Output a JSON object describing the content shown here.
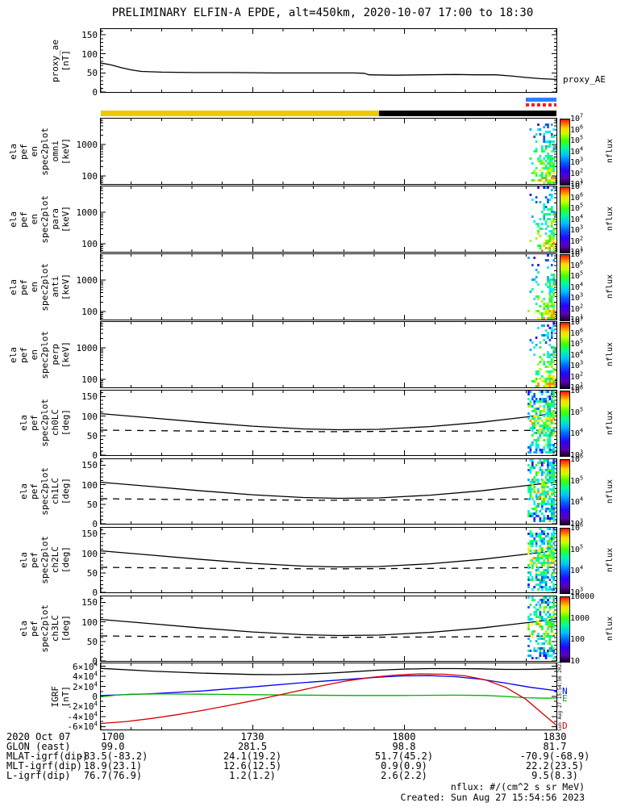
{
  "title": "PRELIMINARY ELFIN-A EPDE, alt=450km, 2020-10-07 17:00 to 18:30",
  "footer": {
    "nflux_units": "nflux: #/(cm^2 s sr MeV)",
    "created": "Created: Sun Aug 27 15:54:56 2023",
    "side_timestamp": "Sun Aug 27 15:54:56 2023"
  },
  "time_axis": {
    "start": "2020-10-07 17:00",
    "end": "2020-10-07 18:30",
    "tick_labels": [
      "1700",
      "1730",
      "1800",
      "1830"
    ],
    "tick_minutes": [
      0,
      30,
      60,
      90
    ],
    "minor_step_min": 6
  },
  "ephemeris": {
    "date_label": "2020 Oct 07",
    "rows": [
      {
        "label": "GLON (east)",
        "values": [
          "99.0",
          "281.5",
          "98.8",
          "81.7"
        ]
      },
      {
        "label": "MLAT-igrf(dip)",
        "values": [
          "-83.5(-83.2)",
          "24.1(19.2)",
          "51.7(45.2)",
          "-70.9(-68.9)"
        ]
      },
      {
        "label": "MLT-igrf(dip)",
        "values": [
          "18.9(23.1)",
          "12.6(12.5)",
          "0.9(0.9)",
          "22.2(23.5)"
        ]
      },
      {
        "label": "L-igrf(dip)",
        "values": [
          "76.7(76.9)",
          "1.2(1.2)",
          "2.6(2.2)",
          "9.5(8.3)"
        ]
      }
    ]
  },
  "colors": {
    "dayside_bar": "#eec900",
    "nightside_bar": "#000000",
    "flag_blue": "#2e7fff",
    "flag_red": "#ff1a1a",
    "igrf_n": "#0000ee",
    "igrf_e": "#00b200",
    "igrf_d": "#d40000"
  },
  "chart_data": [
    {
      "id": "proxy_ae",
      "type": "line",
      "ylabel_lines": [
        "proxy_ae",
        "[nT]"
      ],
      "right_label": "proxy_AE",
      "ylim": [
        0,
        165
      ],
      "minor_step": 10,
      "yticks": [
        {
          "v": 150,
          "label": "150"
        },
        {
          "v": 100,
          "label": "100"
        },
        {
          "v": 50,
          "label": "50"
        },
        {
          "v": 0,
          "label": "0"
        }
      ],
      "series": [
        {
          "name": "proxy_AE",
          "color": "#000000",
          "x": [
            0,
            2,
            4,
            6,
            8,
            12,
            18,
            26,
            34,
            42,
            50,
            52,
            53,
            58,
            64,
            70,
            74,
            78,
            81,
            84,
            87,
            90
          ],
          "values": [
            76,
            71,
            64,
            58,
            54,
            52,
            51,
            51,
            50,
            50,
            50,
            49,
            45,
            44,
            45,
            46,
            45,
            45,
            42,
            38,
            35,
            33
          ]
        }
      ]
    },
    {
      "id": "orbit_bar",
      "type": "strip",
      "segments": [
        {
          "color": "#eec900",
          "t0": 0,
          "t1": 55
        },
        {
          "color": "#000000",
          "t0": 55,
          "t1": 90
        }
      ],
      "flags": [
        {
          "color": "#2e7fff",
          "t0": 84,
          "t1": 90,
          "style": "solid"
        },
        {
          "color": "#ff1a1a",
          "t0": 84,
          "t1": 90,
          "style": "dashed"
        }
      ]
    },
    {
      "id": "en_omni",
      "type": "heatmap",
      "ylabel_lines": [
        "ela",
        "pef",
        "en",
        "spec2plot",
        "omni",
        "[keV]"
      ],
      "ylog": true,
      "ylim": [
        55,
        6800
      ],
      "yticks": [
        {
          "v": 1000,
          "label": "1000"
        },
        {
          "v": 100,
          "label": "100"
        }
      ],
      "colorbar": {
        "labels": [
          "10^7",
          "10^6",
          "10^5",
          "10^4",
          "10^3",
          "10^2",
          "10^1"
        ],
        "title": "nflux"
      },
      "burst": {
        "t0": 84.3,
        "t1": 90,
        "seed": 11,
        "density": 1.0,
        "note": "electron flux enhancement 18:24-18:30, highest flux at 60-300 keV"
      }
    },
    {
      "id": "en_para",
      "type": "heatmap",
      "ylabel_lines": [
        "ela",
        "pef",
        "en",
        "spec2plot",
        "para",
        "[keV]"
      ],
      "ylog": true,
      "ylim": [
        55,
        6800
      ],
      "yticks": [
        {
          "v": 1000,
          "label": "1000"
        },
        {
          "v": 100,
          "label": "100"
        }
      ],
      "colorbar": {
        "labels": [
          "10^7",
          "10^6",
          "10^5",
          "10^4",
          "10^3",
          "10^2",
          "10^1"
        ],
        "title": "nflux"
      },
      "burst": {
        "t0": 84.3,
        "t1": 90,
        "seed": 23,
        "density": 0.9,
        "note": "parallel flux burst near end of interval"
      }
    },
    {
      "id": "en_anti",
      "type": "heatmap",
      "ylabel_lines": [
        "ela",
        "pef",
        "en",
        "spec2plot",
        "anti",
        "[keV]"
      ],
      "ylog": true,
      "ylim": [
        55,
        6800
      ],
      "yticks": [
        {
          "v": 1000,
          "label": "1000"
        },
        {
          "v": 100,
          "label": "100"
        }
      ],
      "colorbar": {
        "labels": [
          "10^7",
          "10^6",
          "10^5",
          "10^4",
          "10^3",
          "10^2",
          "10^1"
        ],
        "title": "nflux"
      },
      "burst": {
        "t0": 84.3,
        "t1": 90,
        "seed": 37,
        "density": 0.95,
        "note": "anti-parallel flux burst near end of interval"
      }
    },
    {
      "id": "en_perp",
      "type": "heatmap",
      "ylabel_lines": [
        "ela",
        "pef",
        "en",
        "spec2plot",
        "perp",
        "[keV]"
      ],
      "ylog": true,
      "ylim": [
        55,
        6800
      ],
      "yticks": [
        {
          "v": 1000,
          "label": "1000"
        },
        {
          "v": 100,
          "label": "100"
        }
      ],
      "colorbar": {
        "labels": [
          "10^7",
          "10^6",
          "10^5",
          "10^4",
          "10^3",
          "10^2",
          "10^1"
        ],
        "title": "nflux"
      },
      "burst": {
        "t0": 84.3,
        "t1": 90,
        "seed": 51,
        "density": 1.0,
        "note": "perpendicular flux burst near end of interval"
      }
    },
    {
      "id": "ch0lc",
      "type": "line-heatmap",
      "ylabel_lines": [
        "ela",
        "pef",
        "spec2plot",
        "ch0LC",
        "[deg]"
      ],
      "ylim": [
        0,
        165
      ],
      "minor_step": 10,
      "yticks": [
        {
          "v": 150,
          "label": "150"
        },
        {
          "v": 100,
          "label": "100"
        },
        {
          "v": 50,
          "label": "50"
        },
        {
          "v": 0,
          "label": "0"
        }
      ],
      "series": [
        {
          "name": "loss-cone",
          "style": "solid",
          "color": "#000000",
          "x": [
            0,
            10,
            20,
            30,
            40,
            47,
            55,
            65,
            75,
            85,
            90
          ],
          "values": [
            106,
            95,
            84,
            74,
            67,
            65,
            66,
            73,
            84,
            99,
            107
          ]
        },
        {
          "name": "anti-loss-cone",
          "style": "dashed",
          "color": "#000000",
          "x": [
            0,
            20,
            45,
            70,
            90
          ],
          "values": [
            64,
            61.5,
            60,
            61.5,
            64
          ]
        }
      ],
      "colorbar": {
        "labels": [
          "10^6",
          "10^5",
          "10^4",
          "10^3"
        ],
        "title": "nflux"
      },
      "burst": {
        "t0": 84.3,
        "t1": 90,
        "seed": 63,
        "density": 1.0
      }
    },
    {
      "id": "ch1lc",
      "type": "line-heatmap",
      "ylabel_lines": [
        "ela",
        "pef",
        "spec2plot",
        "ch1LC",
        "[deg]"
      ],
      "ylim": [
        0,
        165
      ],
      "minor_step": 10,
      "yticks": [
        {
          "v": 150,
          "label": "150"
        },
        {
          "v": 100,
          "label": "100"
        },
        {
          "v": 50,
          "label": "50"
        },
        {
          "v": 0,
          "label": "0"
        }
      ],
      "series": [
        {
          "name": "loss-cone",
          "style": "solid",
          "color": "#000000",
          "x": [
            0,
            10,
            20,
            30,
            40,
            47,
            55,
            65,
            75,
            85,
            90
          ],
          "values": [
            106,
            95,
            84,
            74,
            67,
            65,
            66,
            73,
            84,
            99,
            107
          ]
        },
        {
          "name": "anti-loss-cone",
          "style": "dashed",
          "color": "#000000",
          "x": [
            0,
            20,
            45,
            70,
            90
          ],
          "values": [
            64,
            61.5,
            60,
            61.5,
            64
          ]
        }
      ],
      "colorbar": {
        "labels": [
          "10^6",
          "10^5",
          "10^4",
          "10^3"
        ],
        "title": "nflux"
      },
      "burst": {
        "t0": 84.3,
        "t1": 90,
        "seed": 77,
        "density": 1.0
      }
    },
    {
      "id": "ch2lc",
      "type": "line-heatmap",
      "ylabel_lines": [
        "ela",
        "pef",
        "spec2plot",
        "ch2LC",
        "[deg]"
      ],
      "ylim": [
        0,
        165
      ],
      "minor_step": 10,
      "yticks": [
        {
          "v": 150,
          "label": "150"
        },
        {
          "v": 100,
          "label": "100"
        },
        {
          "v": 50,
          "label": "50"
        },
        {
          "v": 0,
          "label": "0"
        }
      ],
      "series": [
        {
          "name": "loss-cone",
          "style": "solid",
          "color": "#000000",
          "x": [
            0,
            10,
            20,
            30,
            40,
            47,
            55,
            65,
            75,
            85,
            90
          ],
          "values": [
            106,
            95,
            84,
            74,
            67,
            65,
            66,
            73,
            84,
            99,
            107
          ]
        },
        {
          "name": "anti-loss-cone",
          "style": "dashed",
          "color": "#000000",
          "x": [
            0,
            20,
            45,
            70,
            90
          ],
          "values": [
            64,
            61.5,
            60,
            61.5,
            64
          ]
        }
      ],
      "colorbar": {
        "labels": [
          "10^6",
          "10^5",
          "10^4",
          "10^3"
        ],
        "title": "nflux"
      },
      "burst": {
        "t0": 84.3,
        "t1": 90,
        "seed": 89,
        "density": 0.95
      }
    },
    {
      "id": "ch3lc",
      "type": "line-heatmap",
      "ylabel_lines": [
        "ela",
        "pef",
        "spec2plot",
        "ch3LC",
        "[deg]"
      ],
      "ylim": [
        0,
        165
      ],
      "minor_step": 10,
      "yticks": [
        {
          "v": 150,
          "label": "150"
        },
        {
          "v": 100,
          "label": "100"
        },
        {
          "v": 50,
          "label": "50"
        },
        {
          "v": 0,
          "label": "0"
        }
      ],
      "series": [
        {
          "name": "loss-cone",
          "style": "solid",
          "color": "#000000",
          "x": [
            0,
            10,
            20,
            30,
            40,
            47,
            55,
            65,
            75,
            85,
            90
          ],
          "values": [
            106,
            95,
            84,
            74,
            67,
            65,
            66,
            73,
            84,
            99,
            107
          ]
        },
        {
          "name": "anti-loss-cone",
          "style": "dashed",
          "color": "#000000",
          "x": [
            0,
            20,
            45,
            70,
            90
          ],
          "values": [
            64,
            61.5,
            60,
            61.5,
            64
          ]
        }
      ],
      "colorbar": {
        "labels": [
          "10000",
          "1000",
          "100",
          "10"
        ],
        "title": "nflux"
      },
      "burst": {
        "t0": 84.3,
        "t1": 90,
        "seed": 101,
        "density": 0.75
      }
    },
    {
      "id": "igrf",
      "type": "line",
      "ylabel_lines": [
        "IGRF",
        "[nT]"
      ],
      "ylim": [
        -66000,
        66000
      ],
      "minor_step": 10000,
      "yticks": [
        {
          "v": 60000,
          "label": "6×10^4"
        },
        {
          "v": 40000,
          "label": "4×10^4"
        },
        {
          "v": 20000,
          "label": "2×10^4"
        },
        {
          "v": 0,
          "label": "0"
        },
        {
          "v": -20000,
          "label": "-2×10^4"
        },
        {
          "v": -40000,
          "label": "-4×10^4"
        },
        {
          "v": -60000,
          "label": "-6×10^4"
        }
      ],
      "series": [
        {
          "name": "B",
          "color": "#000000",
          "x": [
            0,
            10,
            20,
            30,
            35,
            40,
            45,
            50,
            55,
            60,
            65,
            70,
            75,
            80,
            85,
            90
          ],
          "values": [
            56000,
            50500,
            46500,
            43800,
            43500,
            44500,
            46500,
            49500,
            52500,
            54500,
            55500,
            55500,
            55000,
            54000,
            54000,
            55200
          ]
        },
        {
          "name": "N",
          "color": "#0000ee",
          "x": [
            0,
            10,
            20,
            30,
            40,
            48,
            55,
            60,
            65,
            70,
            75,
            80,
            85,
            90
          ],
          "values": [
            2000,
            5500,
            11000,
            19000,
            27500,
            33500,
            38500,
            41000,
            41500,
            39500,
            34500,
            26500,
            18000,
            11500
          ]
        },
        {
          "name": "E",
          "color": "#00b200",
          "x": [
            0,
            3,
            6,
            12,
            20,
            30,
            40,
            50,
            60,
            70,
            76,
            80,
            84,
            88,
            90
          ],
          "values": [
            -1000,
            2500,
            4500,
            5000,
            4500,
            3500,
            2500,
            2000,
            2000,
            2500,
            2000,
            0,
            -2500,
            -3500,
            -3000
          ]
        },
        {
          "name": "D",
          "color": "#d40000",
          "x": [
            0,
            5,
            10,
            15,
            20,
            25,
            30,
            33,
            38,
            43,
            48,
            53,
            58,
            63,
            68,
            72,
            76,
            80,
            84,
            87,
            90
          ],
          "values": [
            -54000,
            -50000,
            -44000,
            -36500,
            -28000,
            -18500,
            -8500,
            -2000,
            9000,
            20000,
            30000,
            37500,
            42500,
            45000,
            44200,
            41000,
            33000,
            18000,
            -6000,
            -32000,
            -57500
          ]
        }
      ],
      "right_labels": [
        {
          "text": "N",
          "color": "#0000ee"
        },
        {
          "text": "E",
          "color": "#00b200"
        },
        {
          "text": "D",
          "color": "#d40000"
        }
      ]
    }
  ]
}
